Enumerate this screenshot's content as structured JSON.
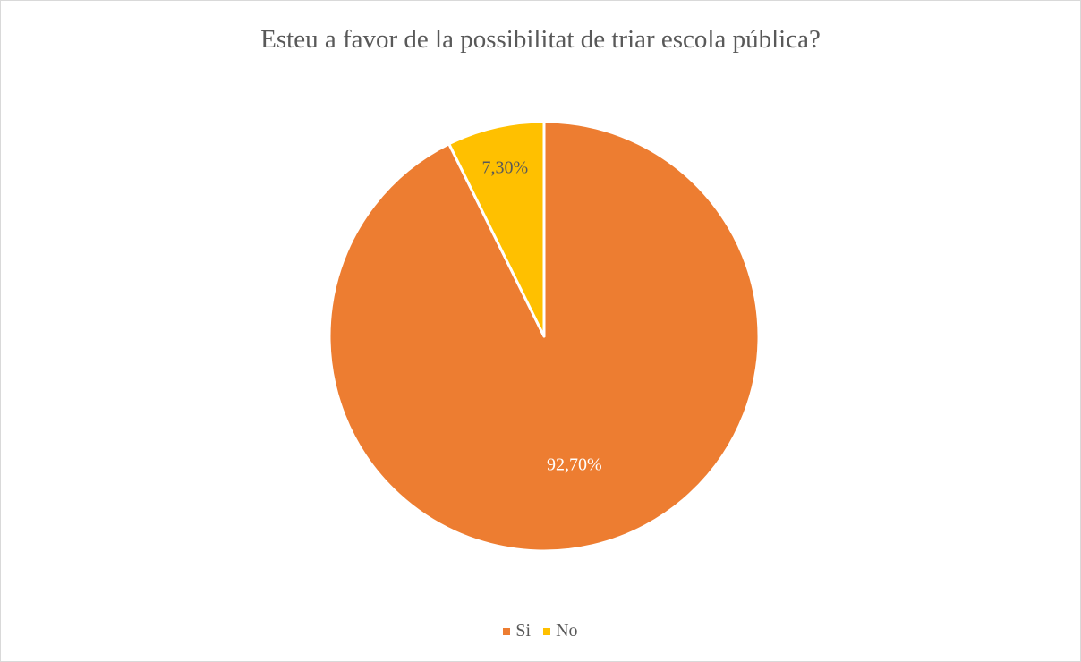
{
  "chart_data": {
    "type": "pie",
    "title": "Esteu a favor de la possibilitat de triar escola pública?",
    "slices": [
      {
        "name": "Si",
        "value": 92.7,
        "label": "92,70%",
        "color": "#ED7D31",
        "label_color": "#FFFFFF"
      },
      {
        "name": "No",
        "value": 7.3,
        "label": "7,30%",
        "color": "#FFC000",
        "label_color": "#595959"
      }
    ],
    "legend": {
      "position": "bottom",
      "items": [
        {
          "name": "Si",
          "color": "#ED7D31"
        },
        {
          "name": "No",
          "color": "#FFC000"
        }
      ]
    }
  }
}
